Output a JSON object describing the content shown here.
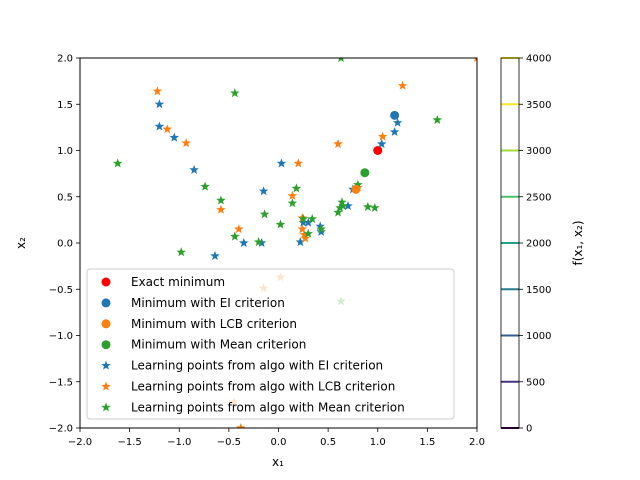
{
  "chart_data": {
    "type": "scatter",
    "background": "contour",
    "xlim": [
      -2,
      2
    ],
    "ylim": [
      -2,
      2
    ],
    "xlabel": "x₁",
    "ylabel": "x₂",
    "colorbar_label": "f(x₁, x₂)",
    "x_ticks": [
      -2.0,
      -1.5,
      -1.0,
      -0.5,
      0.0,
      0.5,
      1.0,
      1.5,
      2.0
    ],
    "y_ticks": [
      -2.0,
      -1.5,
      -1.0,
      -0.5,
      0.0,
      0.5,
      1.0,
      1.5,
      2.0
    ],
    "x_tick_labels": [
      "−2.0",
      "−1.5",
      "−1.0",
      "−0.5",
      "0.0",
      "0.5",
      "1.0",
      "1.5",
      "2.0"
    ],
    "y_tick_labels": [
      "−2.0",
      "−1.5",
      "−1.0",
      "−0.5",
      "0.0",
      "0.5",
      "1.0",
      "1.5",
      "2.0"
    ],
    "contour_levels": [
      0,
      500,
      1000,
      1500,
      2000,
      2500,
      3000,
      3500,
      4000
    ],
    "colorbar_tick_labels": [
      "0",
      "500",
      "1000",
      "1500",
      "2000",
      "2500",
      "3000",
      "3500",
      "4000"
    ],
    "contour_colors": [
      "#440154",
      "#46327e",
      "#365c8d",
      "#277f8e",
      "#1fa187",
      "#4ac16d",
      "#a0da39",
      "#fde725",
      "#fde725"
    ],
    "legend_position": "lower-left",
    "series": [
      {
        "name": "Exact minimum",
        "marker": "circle",
        "color": "#ff0000",
        "points": [
          [
            1.0,
            1.0
          ]
        ]
      },
      {
        "name": "Minimum with EI criterion",
        "marker": "circle",
        "color": "#1f77b4",
        "points": [
          [
            1.17,
            1.38
          ]
        ]
      },
      {
        "name": "Minimum with LCB criterion",
        "marker": "circle",
        "color": "#ff7f0e",
        "points": [
          [
            0.78,
            0.58
          ]
        ]
      },
      {
        "name": "Minimum with Mean criterion",
        "marker": "circle",
        "color": "#2ca02c",
        "points": [
          [
            0.87,
            0.76
          ]
        ]
      },
      {
        "name": "Learning points from algo with EI criterion",
        "marker": "star",
        "color": "#1f77b4",
        "points": [
          [
            -1.2,
            1.5
          ],
          [
            -1.2,
            1.26
          ],
          [
            -1.05,
            1.14
          ],
          [
            -0.85,
            0.79
          ],
          [
            -0.64,
            -0.14
          ],
          [
            -0.35,
            0.0
          ],
          [
            -0.15,
            0.56
          ],
          [
            0.03,
            0.86
          ],
          [
            -0.17,
            0.0
          ],
          [
            0.22,
            0.01
          ],
          [
            0.25,
            0.22
          ],
          [
            0.3,
            0.22
          ],
          [
            0.42,
            0.18
          ],
          [
            0.43,
            0.12
          ],
          [
            0.7,
            0.4
          ],
          [
            0.75,
            0.58
          ],
          [
            1.04,
            1.07
          ],
          [
            1.17,
            1.2
          ],
          [
            1.2,
            1.3
          ]
        ]
      },
      {
        "name": "Learning points from algo with LCB criterion",
        "marker": "star",
        "color": "#ff7f0e",
        "points": [
          [
            -1.22,
            1.64
          ],
          [
            -1.12,
            1.23
          ],
          [
            -0.93,
            1.08
          ],
          [
            -0.4,
            0.15
          ],
          [
            -0.58,
            0.36
          ],
          [
            -0.45,
            -1.72
          ],
          [
            -0.15,
            -0.49
          ],
          [
            0.02,
            -0.37
          ],
          [
            0.14,
            0.51
          ],
          [
            0.2,
            0.86
          ],
          [
            0.24,
            0.27
          ],
          [
            0.24,
            0.15
          ],
          [
            0.26,
            0.09
          ],
          [
            0.27,
            0.05
          ],
          [
            0.6,
            1.07
          ],
          [
            0.8,
            0.6
          ],
          [
            1.05,
            1.15
          ],
          [
            1.25,
            1.7
          ],
          [
            -0.38,
            -2.0
          ],
          [
            2.0,
            2.0
          ]
        ]
      },
      {
        "name": "Learning points from algo with Mean criterion",
        "marker": "star",
        "color": "#2ca02c",
        "points": [
          [
            -1.62,
            0.86
          ],
          [
            -0.98,
            -0.1
          ],
          [
            -0.74,
            0.61
          ],
          [
            -0.58,
            0.46
          ],
          [
            -0.44,
            1.62
          ],
          [
            -0.44,
            0.07
          ],
          [
            -0.2,
            0.01
          ],
          [
            -0.14,
            0.31
          ],
          [
            0.02,
            0.2
          ],
          [
            0.14,
            0.43
          ],
          [
            0.18,
            0.59
          ],
          [
            0.25,
            0.26
          ],
          [
            0.3,
            0.1
          ],
          [
            0.34,
            0.26
          ],
          [
            0.43,
            0.15
          ],
          [
            0.6,
            0.33
          ],
          [
            0.62,
            0.38
          ],
          [
            0.64,
            0.44
          ],
          [
            0.65,
            0.4
          ],
          [
            0.8,
            0.63
          ],
          [
            0.9,
            0.39
          ],
          [
            0.97,
            0.38
          ],
          [
            1.6,
            1.33
          ],
          [
            0.63,
            2.0
          ],
          [
            0.63,
            -0.63
          ]
        ]
      }
    ]
  }
}
